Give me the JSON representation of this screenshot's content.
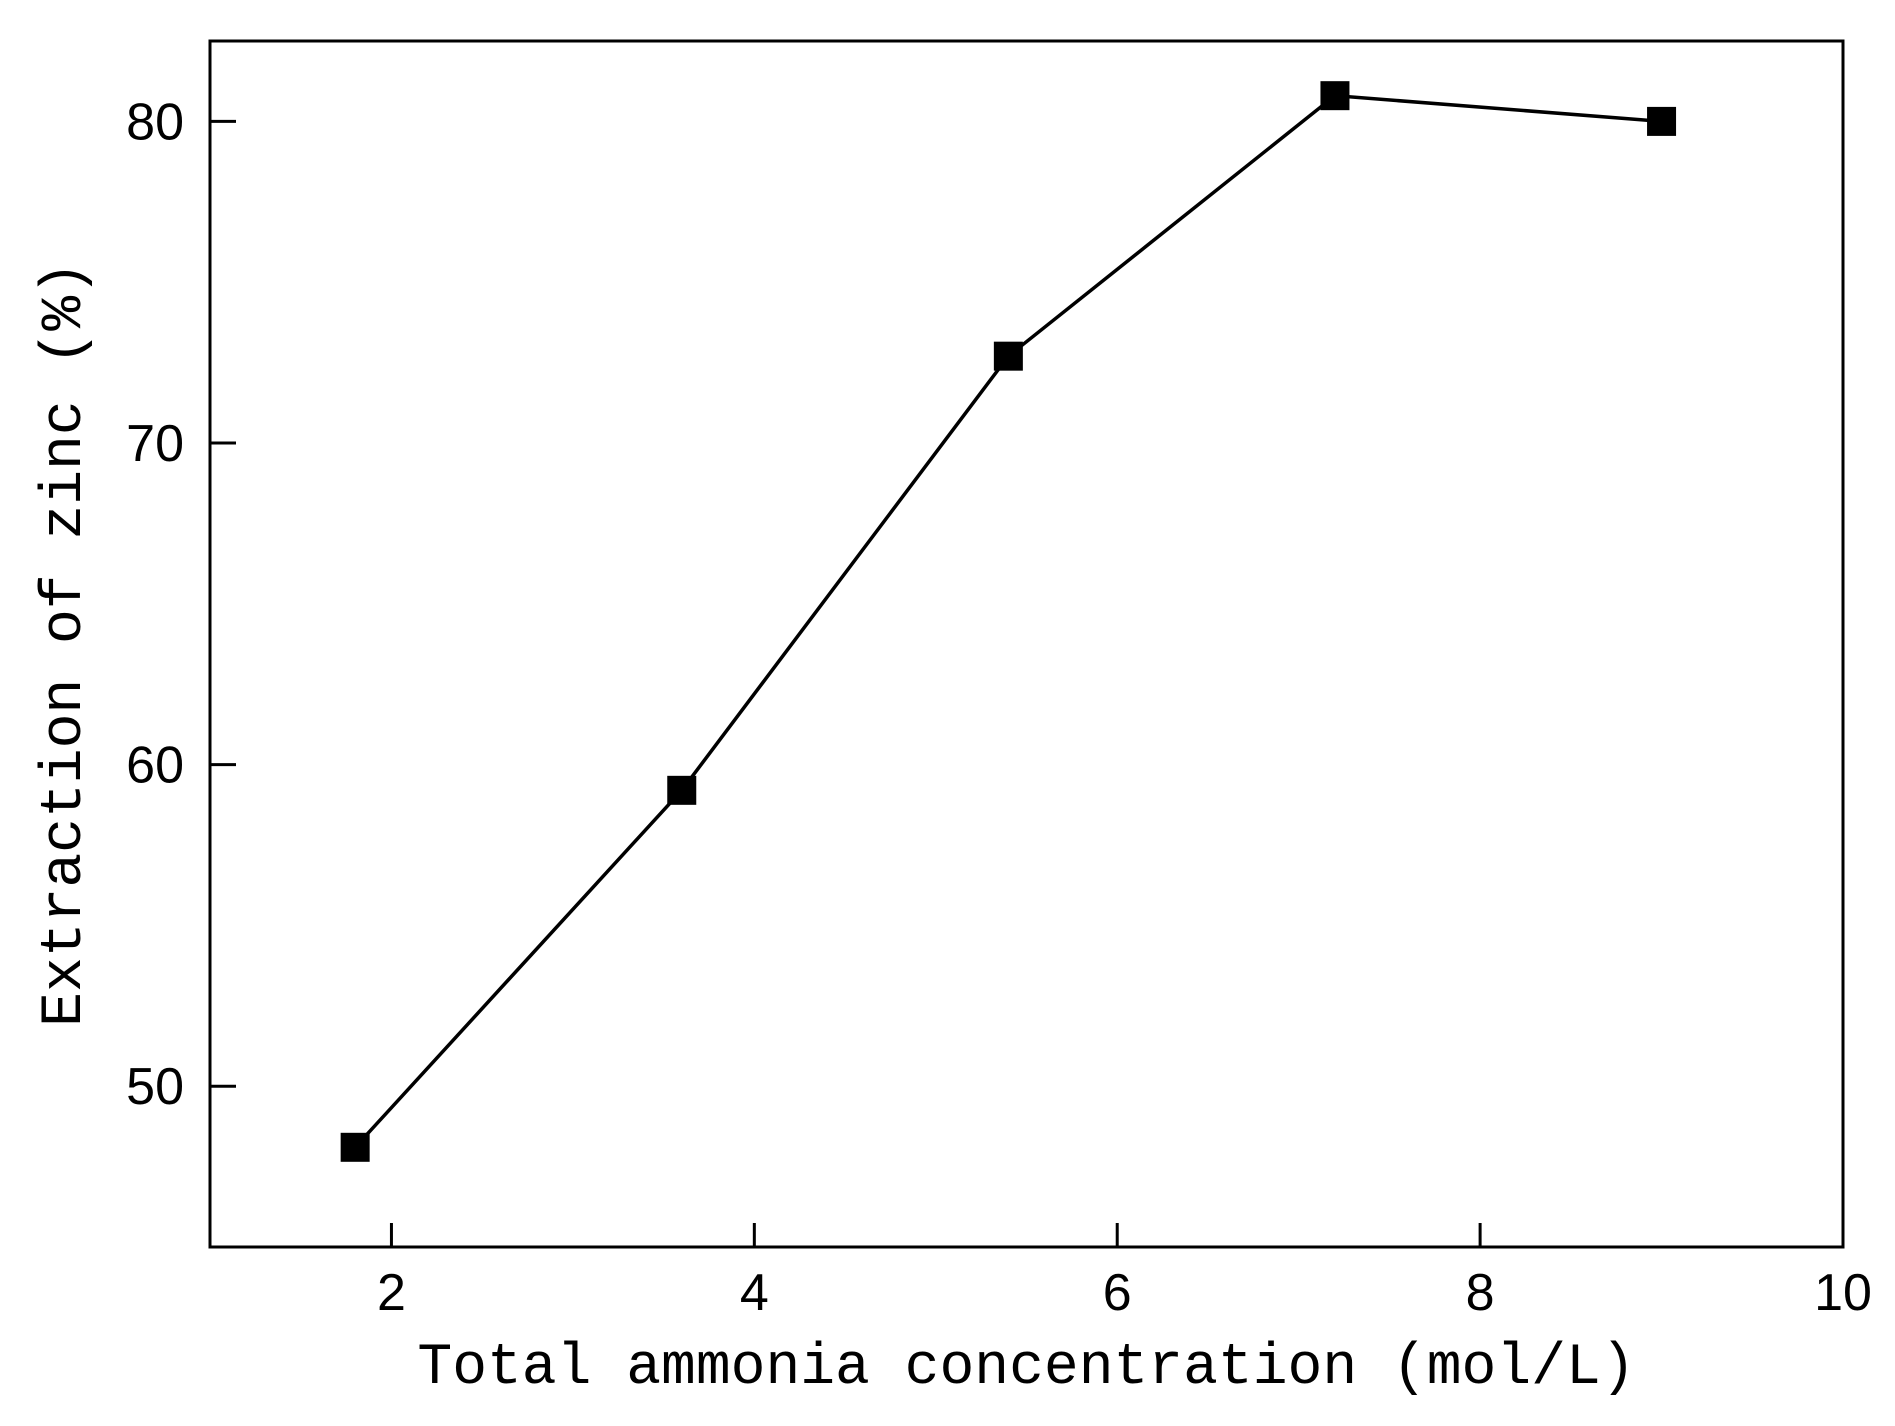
{
  "chart_data": {
    "type": "line",
    "title": "",
    "xlabel": "Total ammonia concentration (mol/L)",
    "ylabel": "Extraction of zinc (%)",
    "series": [
      {
        "name": "Extraction of zinc",
        "x": [
          1.8,
          3.6,
          5.4,
          7.2,
          9.0
        ],
        "y": [
          48.1,
          59.2,
          72.7,
          80.8,
          80.0
        ],
        "marker": "filled-square",
        "line_color": "#000000",
        "marker_color": "#000000"
      }
    ],
    "xlim": [
      1,
      10
    ],
    "ylim": [
      45,
      82.5
    ],
    "xticks": [
      2,
      4,
      6,
      8,
      10
    ],
    "yticks": [
      50,
      60,
      70,
      80
    ],
    "grid": false,
    "legend": "none",
    "frame": "box",
    "axis_color": "#000000",
    "background_color": "#ffffff"
  }
}
